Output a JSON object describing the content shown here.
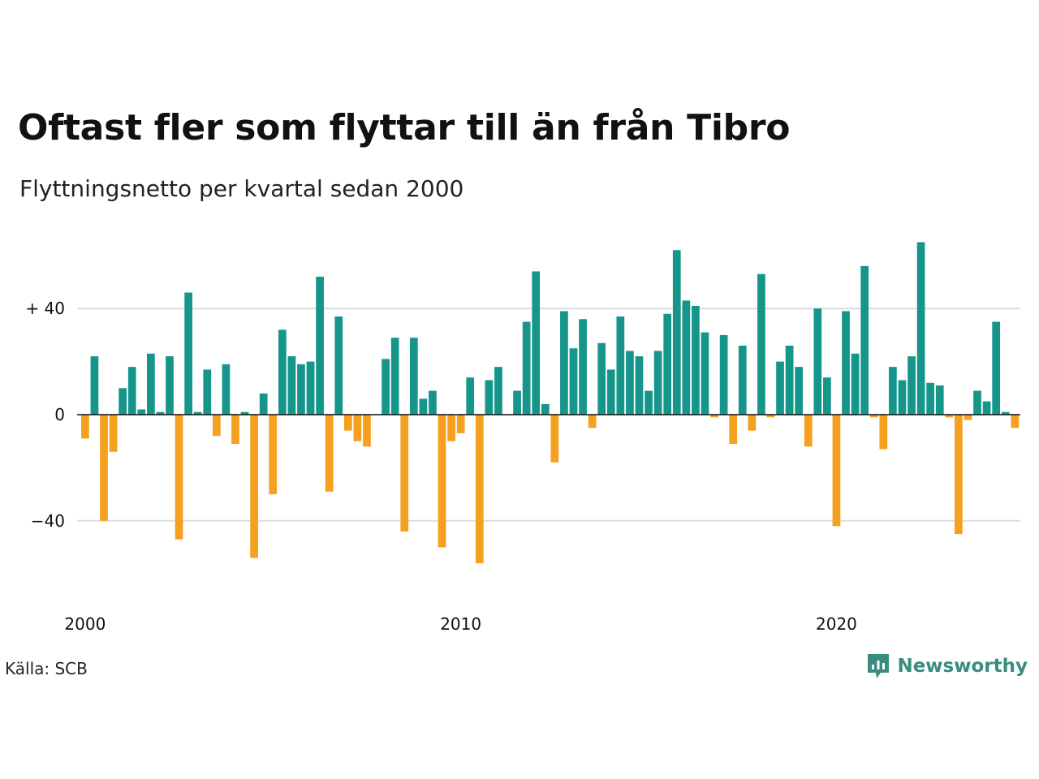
{
  "title": "Oftast fler som flyttar till än från Tibro",
  "subtitle": "Flyttningsnetto per kvartal sedan 2000",
  "source": "Källa: SCB",
  "brand": {
    "name": "Newsworthy",
    "icon": "newsworthy-logo-icon",
    "color": "#3a8c7e"
  },
  "colors": {
    "positive": "#16968a",
    "negative": "#f5a01e",
    "grid": "#dddddd",
    "zero": "#111111"
  },
  "chart_data": {
    "type": "bar",
    "title": "Oftast fler som flyttar till än från Tibro",
    "subtitle": "Flyttningsnetto per kvartal sedan 2000",
    "xlabel": "",
    "ylabel": "",
    "start_period": "2000 Q1",
    "frequency": "quarterly",
    "x_ticks": [
      "2000",
      "2010",
      "2020"
    ],
    "y_ticks": [
      {
        "value": 40,
        "label": "+ 40"
      },
      {
        "value": 0,
        "label": "0"
      },
      {
        "value": -40,
        "label": "−40"
      }
    ],
    "ylim": [
      -62,
      68
    ],
    "grid": true,
    "legend": "none",
    "values": [
      -9,
      22,
      -40,
      -14,
      10,
      18,
      2,
      23,
      1,
      22,
      -47,
      46,
      1,
      17,
      -8,
      19,
      -11,
      1,
      -54,
      8,
      -30,
      32,
      22,
      19,
      20,
      52,
      -29,
      37,
      -6,
      -10,
      -12,
      0,
      21,
      29,
      -44,
      29,
      6,
      9,
      -50,
      -10,
      -7,
      14,
      -56,
      13,
      18,
      0,
      9,
      35,
      54,
      4,
      -18,
      39,
      25,
      36,
      -5,
      27,
      17,
      37,
      24,
      22,
      9,
      24,
      38,
      62,
      43,
      41,
      31,
      -1,
      30,
      -11,
      26,
      -6,
      53,
      -1,
      20,
      26,
      18,
      -12,
      40,
      14,
      -42,
      39,
      23,
      56,
      -1,
      -13,
      18,
      13,
      22,
      65,
      12,
      11,
      -1,
      -45,
      -2,
      9,
      5,
      35,
      1,
      -5
    ]
  }
}
